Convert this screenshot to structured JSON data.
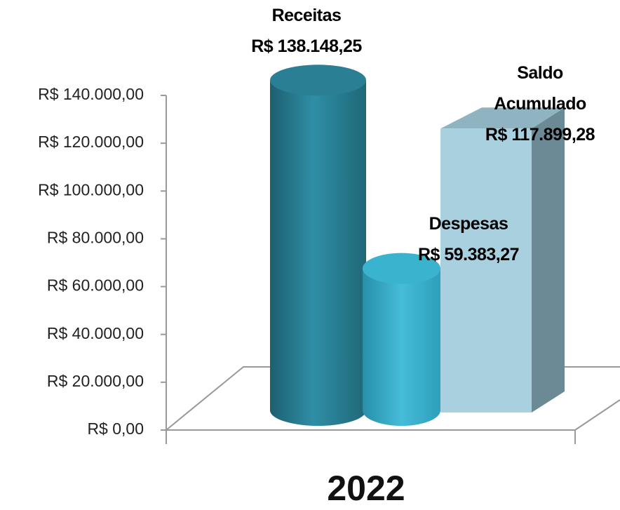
{
  "chart_data": {
    "type": "bar3d",
    "categories": [
      "2022"
    ],
    "series": [
      {
        "name": "Receitas",
        "color": "#2a7f95",
        "values": [
          138148.25
        ],
        "value_labels": [
          "R$ 138.148,25"
        ]
      },
      {
        "name": "Despesas",
        "color": "#3ab3cf",
        "values": [
          59383.27
        ],
        "value_labels": [
          "R$ 59.383,27"
        ]
      },
      {
        "name": "Saldo Acumulado",
        "color": "#a9d0df",
        "values": [
          117899.28
        ],
        "value_labels": [
          "R$ 117.899,28"
        ]
      }
    ],
    "ylim": [
      0,
      140000
    ],
    "yticks": [
      {
        "value": 0,
        "label": "R$ 0,00"
      },
      {
        "value": 20000,
        "label": "R$ 20.000,00"
      },
      {
        "value": 40000,
        "label": "R$ 40.000,00"
      },
      {
        "value": 60000,
        "label": "R$ 60.000,00"
      },
      {
        "value": 80000,
        "label": "R$ 80.000,00"
      },
      {
        "value": 100000,
        "label": "R$ 100.000,00"
      },
      {
        "value": 120000,
        "label": "R$ 120.000,00"
      },
      {
        "value": 140000,
        "label": "R$ 140.000,00"
      }
    ]
  }
}
